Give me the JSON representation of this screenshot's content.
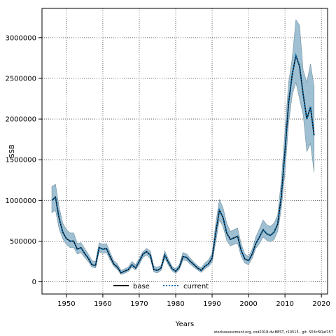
{
  "chart_data": {
    "type": "line",
    "xlabel": "Years",
    "ylabel": "SSB",
    "xlim": [
      1943.3,
      2021.7
    ],
    "ylim": [
      -150000,
      3360000
    ],
    "xticks": [
      1950,
      1960,
      1970,
      1980,
      1990,
      2000,
      2010,
      2020
    ],
    "yticks": [
      0,
      500000,
      1000000,
      1500000,
      2000000,
      2500000,
      3000000
    ],
    "grid": true,
    "legend": {
      "placement": "bottom",
      "entries": [
        "base",
        "current"
      ]
    },
    "colors": {
      "band": "#9fc0d2",
      "band_edge": "#6f8fa0",
      "base": "#000000",
      "current": "#0b6fb0"
    },
    "x": [
      1946,
      1947,
      1948,
      1949,
      1950,
      1951,
      1952,
      1953,
      1954,
      1955,
      1956,
      1957,
      1958,
      1959,
      1960,
      1961,
      1962,
      1963,
      1964,
      1965,
      1966,
      1967,
      1968,
      1969,
      1970,
      1971,
      1972,
      1973,
      1974,
      1975,
      1976,
      1977,
      1978,
      1979,
      1980,
      1981,
      1982,
      1983,
      1984,
      1985,
      1986,
      1987,
      1988,
      1989,
      1990,
      1991,
      1992,
      1993,
      1994,
      1995,
      1996,
      1997,
      1998,
      1999,
      2000,
      2001,
      2002,
      2003,
      2004,
      2005,
      2006,
      2007,
      2008,
      2009,
      2010,
      2011,
      2012,
      2013,
      2014,
      2015,
      2016,
      2017,
      2018
    ],
    "series": [
      {
        "name": "base",
        "values": [
          1000000,
          1040000,
          780000,
          610000,
          530000,
          500000,
          500000,
          400000,
          420000,
          350000,
          290000,
          210000,
          200000,
          420000,
          400000,
          410000,
          310000,
          220000,
          180000,
          110000,
          130000,
          150000,
          210000,
          170000,
          250000,
          340000,
          370000,
          330000,
          150000,
          140000,
          170000,
          330000,
          240000,
          160000,
          130000,
          180000,
          310000,
          300000,
          250000,
          210000,
          170000,
          140000,
          190000,
          220000,
          290000,
          600000,
          880000,
          790000,
          600000,
          520000,
          540000,
          560000,
          380000,
          280000,
          260000,
          340000,
          470000,
          550000,
          640000,
          590000,
          570000,
          610000,
          710000,
          1050000,
          1600000,
          2200000,
          2550000,
          2780000,
          2650000,
          2300000,
          2000000,
          2150000,
          1800000
        ]
      },
      {
        "name": "current",
        "values": [
          1000000,
          1040000,
          780000,
          610000,
          530000,
          500000,
          500000,
          400000,
          420000,
          350000,
          290000,
          210000,
          200000,
          420000,
          400000,
          410000,
          310000,
          220000,
          180000,
          110000,
          130000,
          150000,
          210000,
          170000,
          250000,
          340000,
          370000,
          330000,
          150000,
          140000,
          170000,
          330000,
          240000,
          160000,
          130000,
          180000,
          310000,
          300000,
          250000,
          210000,
          170000,
          140000,
          190000,
          220000,
          290000,
          600000,
          880000,
          790000,
          600000,
          520000,
          540000,
          560000,
          380000,
          280000,
          260000,
          340000,
          470000,
          550000,
          640000,
          590000,
          570000,
          610000,
          710000,
          1050000,
          1600000,
          2200000,
          2550000,
          2780000,
          2650000,
          2300000,
          2000000,
          2150000,
          1800000
        ]
      }
    ],
    "band_upper": [
      1170000,
      1200000,
      920000,
      720000,
      640000,
      600000,
      600000,
      470000,
      480000,
      410000,
      340000,
      260000,
      250000,
      480000,
      460000,
      470000,
      360000,
      260000,
      220000,
      140000,
      160000,
      180000,
      250000,
      210000,
      290000,
      370000,
      410000,
      380000,
      190000,
      180000,
      200000,
      380000,
      280000,
      190000,
      160000,
      210000,
      360000,
      340000,
      290000,
      240000,
      200000,
      170000,
      230000,
      270000,
      350000,
      720000,
      1010000,
      910000,
      720000,
      620000,
      640000,
      660000,
      460000,
      340000,
      310000,
      400000,
      550000,
      650000,
      760000,
      700000,
      680000,
      720000,
      820000,
      1250000,
      1850000,
      2450000,
      2750000,
      3220000,
      3150000,
      2600000,
      2450000,
      2680000,
      2400000
    ],
    "band_lower": [
      850000,
      880000,
      650000,
      530000,
      460000,
      420000,
      420000,
      340000,
      360000,
      300000,
      250000,
      180000,
      170000,
      370000,
      350000,
      360000,
      270000,
      190000,
      150000,
      90000,
      105000,
      125000,
      180000,
      145000,
      210000,
      300000,
      330000,
      290000,
      120000,
      110000,
      140000,
      290000,
      205000,
      135000,
      105000,
      150000,
      265000,
      260000,
      215000,
      180000,
      145000,
      115000,
      160000,
      190000,
      240000,
      490000,
      760000,
      680000,
      510000,
      440000,
      460000,
      470000,
      310000,
      230000,
      210000,
      290000,
      410000,
      470000,
      550000,
      510000,
      490000,
      520000,
      620000,
      900000,
      1350000,
      1950000,
      2300000,
      2450000,
      2250000,
      2050000,
      1600000,
      1700000,
      1350000
    ]
  },
  "footer": {
    "note": "stockassessment.org, cod2018-dv-BEST, r10515 , git: 503cf91af157"
  }
}
